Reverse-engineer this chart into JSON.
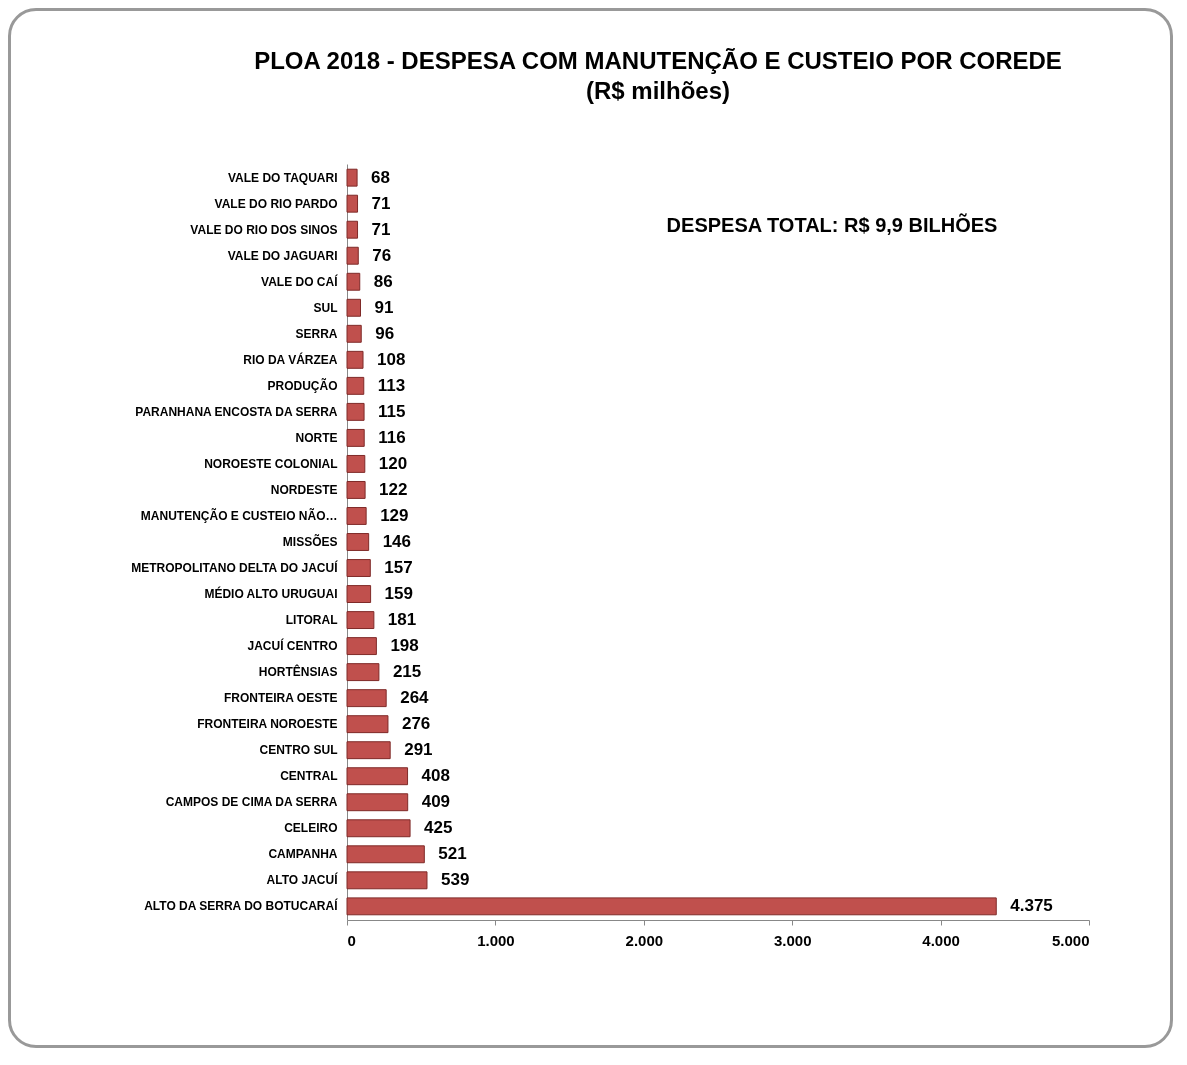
{
  "chart_data": {
    "type": "bar",
    "orientation": "horizontal",
    "title": "PLOA 2018 - DESPESA COM MANUTENÇÃO E CUSTEIO POR COREDE",
    "subtitle": "(R$ milhões)",
    "categories": [
      "VALE DO TAQUARI",
      "VALE DO RIO PARDO",
      "VALE DO RIO DOS SINOS",
      "VALE DO JAGUARI",
      "VALE DO CAÍ",
      "SUL",
      "SERRA",
      "RIO DA VÁRZEA",
      "PRODUÇÃO",
      "PARANHANA ENCOSTA DA SERRA",
      "NORTE",
      "NOROESTE COLONIAL",
      "NORDESTE",
      "MANUTENÇÃO E CUSTEIO NÃO…",
      "MISSÕES",
      "METROPOLITANO DELTA DO JACUÍ",
      "MÉDIO ALTO URUGUAI",
      "LITORAL",
      "JACUÍ CENTRO",
      "HORTÊNSIAS",
      "FRONTEIRA OESTE",
      "FRONTEIRA NOROESTE",
      "CENTRO SUL",
      "CENTRAL",
      "CAMPOS DE CIMA DA SERRA",
      "CELEIRO",
      "CAMPANHA",
      "ALTO JACUÍ",
      "ALTO DA SERRA DO BOTUCARAÍ"
    ],
    "values": [
      68,
      71,
      71,
      76,
      86,
      91,
      96,
      108,
      113,
      115,
      116,
      120,
      122,
      129,
      146,
      157,
      159,
      181,
      198,
      215,
      264,
      276,
      291,
      408,
      409,
      425,
      521,
      539,
      4375
    ],
    "value_labels": [
      "68",
      "71",
      "71",
      "76",
      "86",
      "91",
      "96",
      "108",
      "113",
      "115",
      "116",
      "120",
      "122",
      "129",
      "146",
      "157",
      "159",
      "181",
      "198",
      "215",
      "264",
      "276",
      "291",
      "408",
      "409",
      "425",
      "521",
      "539",
      "4.375"
    ],
    "color": "#c0504d",
    "xlim": [
      0,
      5000
    ],
    "xticks": [
      0,
      {
        "value": 1000,
        "label": "1.000"
      },
      {
        "value": 2000,
        "label": "2.000"
      },
      {
        "value": 3000,
        "label": "3.000"
      },
      {
        "value": 4000,
        "label": "4.000"
      },
      {
        "value": 5000,
        "label": "5.000"
      }
    ],
    "annotations": [
      "DESPESA TOTAL: R$ 9,9 BILHÕES"
    ]
  }
}
